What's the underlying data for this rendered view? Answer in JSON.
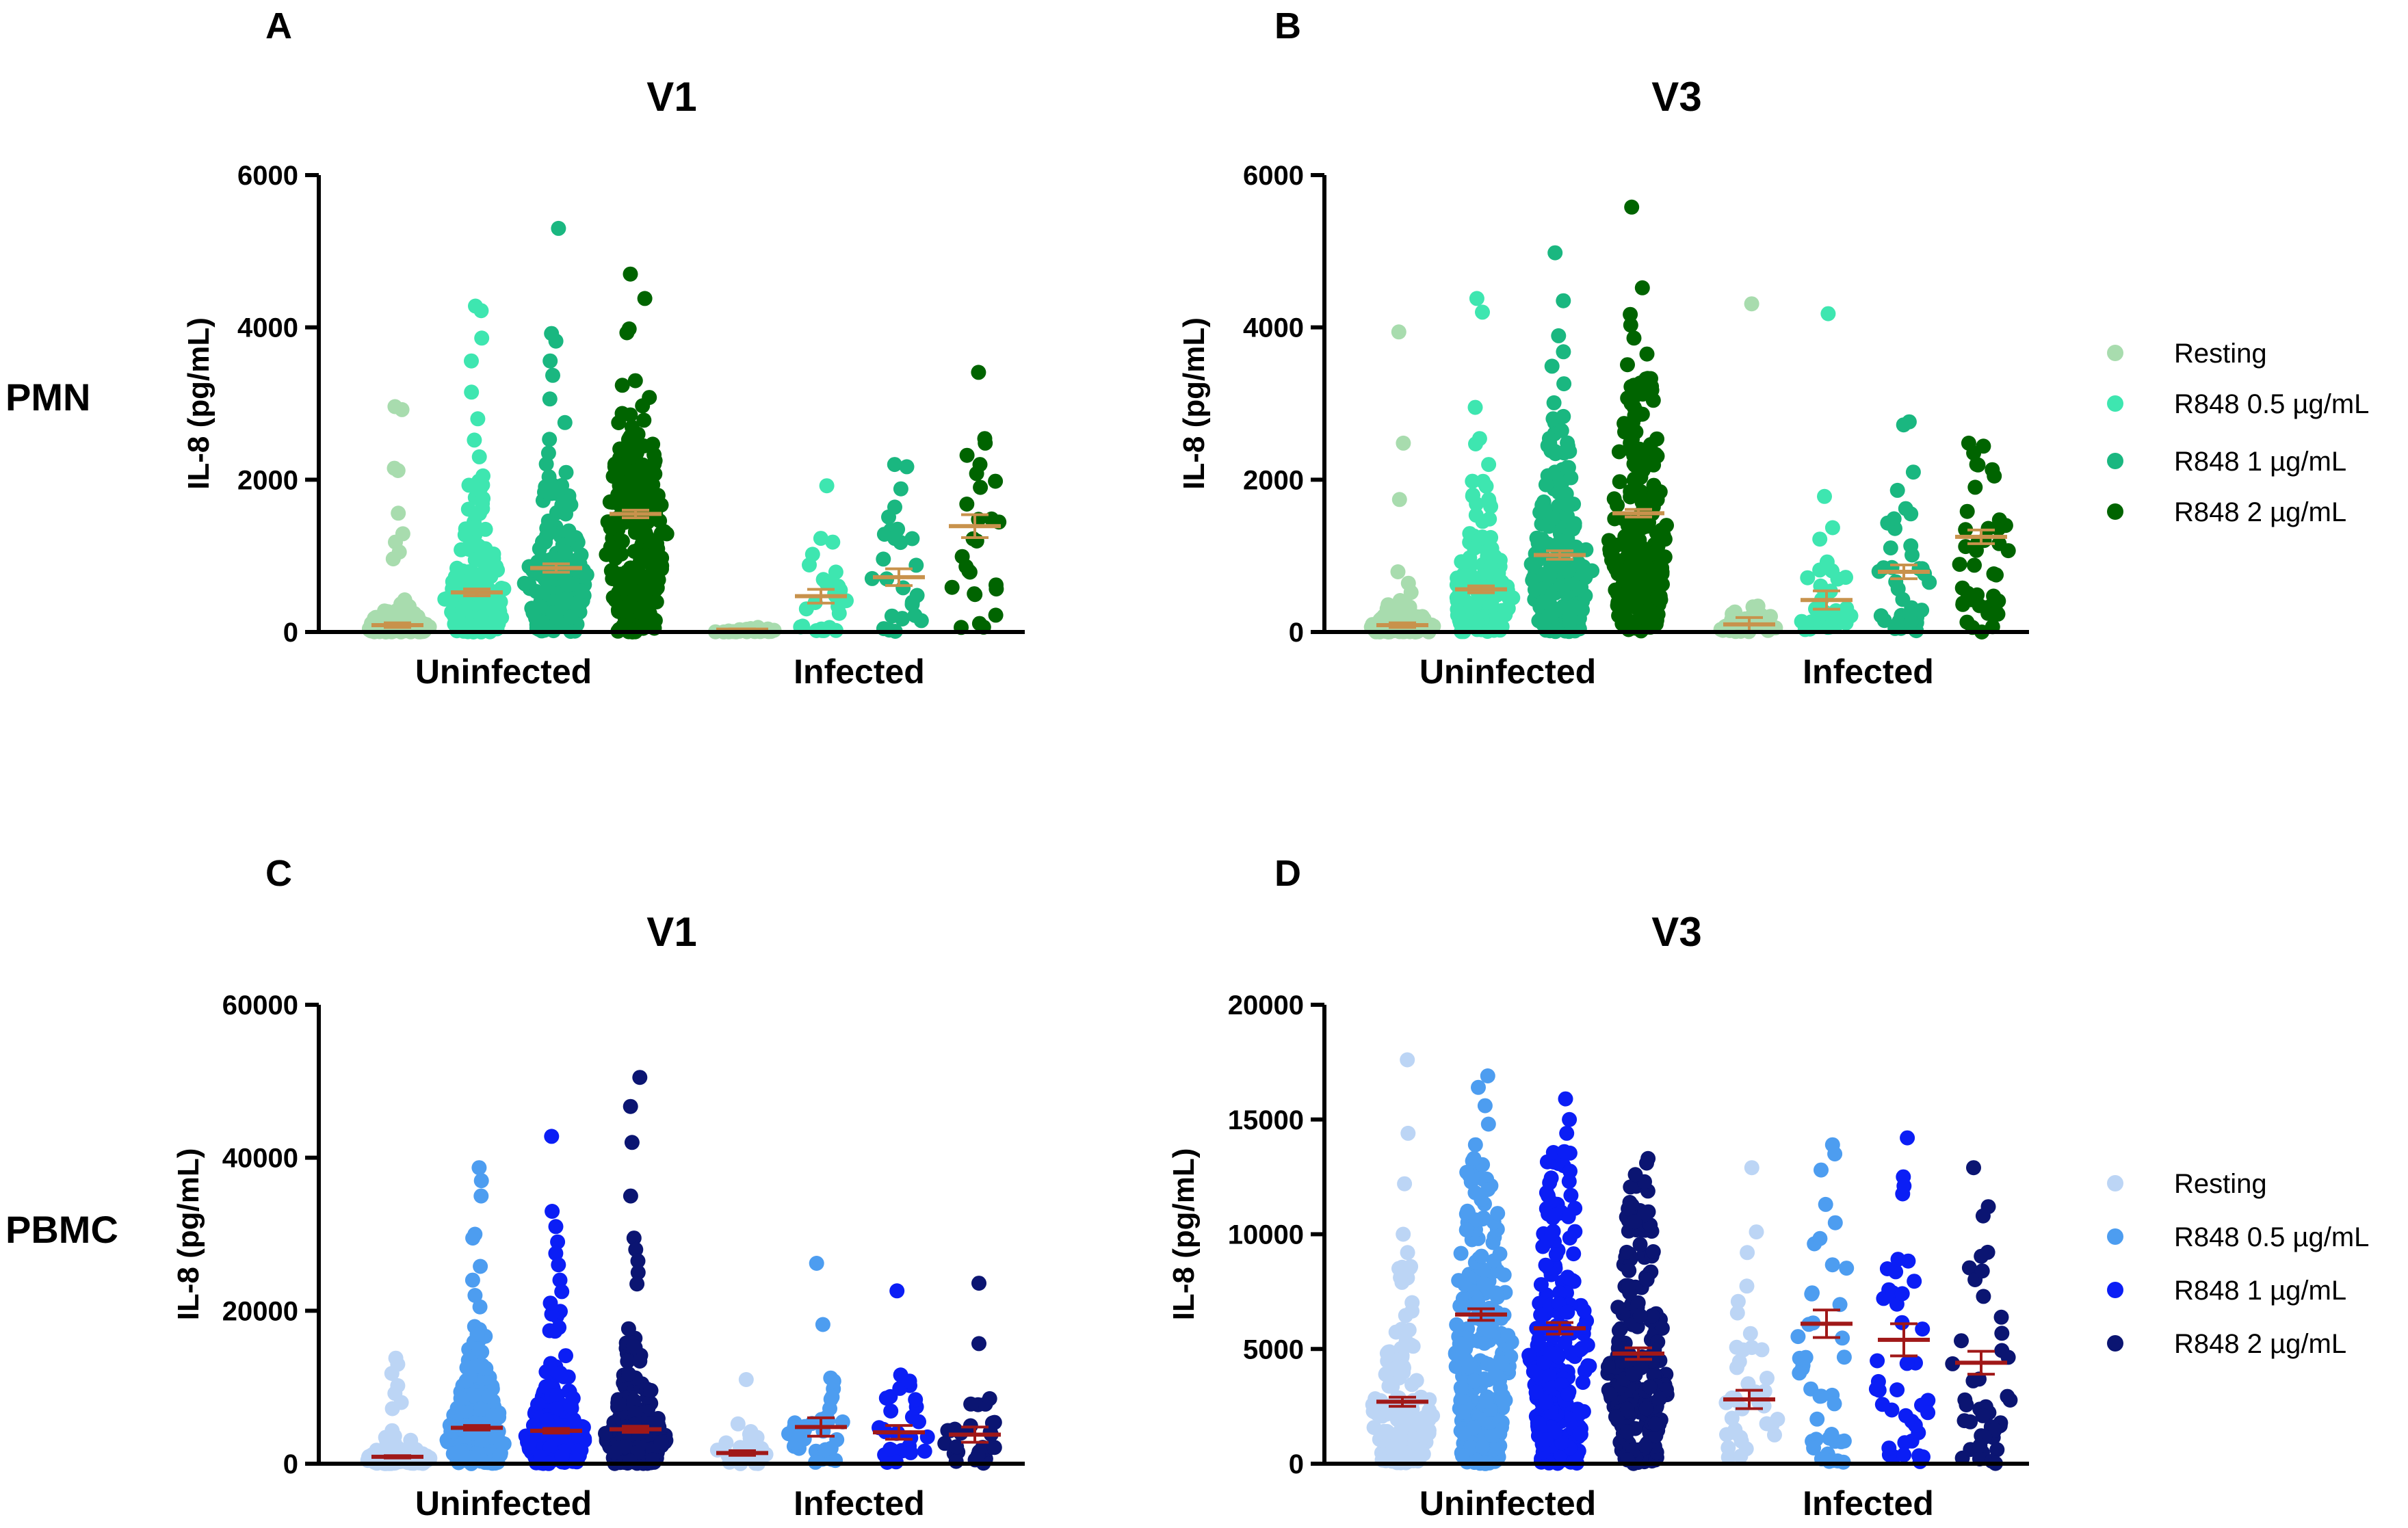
{
  "figure": {
    "row_labels": [
      "PMN",
      "PBMC"
    ],
    "legend_top": {
      "entries": [
        {
          "label": "Resting",
          "color": "#a8dcae"
        },
        {
          "label": "R848 0.5 µg/mL",
          "color": "#3ee6b0"
        },
        {
          "label": "R848 1 µg/mL",
          "color": "#1ab780"
        },
        {
          "label": "R848 2 µg/mL",
          "color": "#006400"
        }
      ]
    },
    "legend_bottom": {
      "entries": [
        {
          "label": "Resting",
          "color": "#bcd5f5"
        },
        {
          "label": "R848 0.5 µg/mL",
          "color": "#4d9df0"
        },
        {
          "label": "R848 1 µg/mL",
          "color": "#0b1ef5"
        },
        {
          "label": "R848 2 µg/mL",
          "color": "#0b1572"
        }
      ]
    }
  },
  "chart_data": [
    {
      "panel": "A",
      "title": "V1",
      "type": "scatter",
      "ylabel": "IL-8 (pg/mL)",
      "ylim": [
        0,
        6000
      ],
      "yticks": [
        0,
        2000,
        4000,
        6000
      ],
      "tick_labels": [
        "0",
        "2000",
        "4000",
        "6000"
      ],
      "groups": [
        "Uninfected",
        "Infected"
      ],
      "mean_color": "#c8924c",
      "series": [
        {
          "name": "Resting",
          "group": "Uninfected",
          "color": "#a8dcae",
          "mean": 90,
          "sem": 30,
          "n": 160,
          "extremes": [
            2960,
            2920,
            2150,
            2120,
            1560,
            1290,
            1180,
            1050,
            960
          ]
        },
        {
          "name": "R848 0.5 µg/mL",
          "group": "Uninfected",
          "color": "#3ee6b0",
          "mean": 520,
          "sem": 45,
          "n": 200,
          "extremes": [
            4280,
            4220,
            3860,
            3560,
            3150,
            2800,
            2520,
            2300,
            2050
          ]
        },
        {
          "name": "R848 1 µg/mL",
          "group": "Uninfected",
          "color": "#1ab780",
          "mean": 840,
          "sem": 55,
          "n": 210,
          "extremes": [
            5300,
            3920,
            3820,
            3560,
            3370,
            3060,
            2750,
            2530,
            2350
          ]
        },
        {
          "name": "R848 2 µg/mL",
          "group": "Uninfected",
          "color": "#006400",
          "mean": 1550,
          "sem": 50,
          "n": 240,
          "extremes": [
            4700,
            4380,
            3980,
            3930,
            3300,
            3240,
            3080,
            2970,
            2870
          ]
        },
        {
          "name": "Resting",
          "group": "Infected",
          "color": "#a8dcae",
          "mean": 30,
          "sem": 10,
          "n": 26,
          "extremes": [
            60
          ]
        },
        {
          "name": "R848 0.5 µg/mL",
          "group": "Infected",
          "color": "#3ee6b0",
          "mean": 470,
          "sem": 90,
          "n": 28,
          "extremes": [
            1920,
            1230,
            1180,
            1020,
            880
          ]
        },
        {
          "name": "R848 1 µg/mL",
          "group": "Infected",
          "color": "#1ab780",
          "mean": 720,
          "sem": 110,
          "n": 28,
          "extremes": [
            2200,
            2170,
            1880,
            1640,
            1510,
            1350
          ]
        },
        {
          "name": "R848 2 µg/mL",
          "group": "Infected",
          "color": "#006400",
          "mean": 1390,
          "sem": 150,
          "n": 27,
          "extremes": [
            3410,
            2540,
            2480,
            2320,
            2200,
            2080,
            1980
          ]
        }
      ]
    },
    {
      "panel": "B",
      "title": "V3",
      "type": "scatter",
      "ylabel": "IL-8 (pg/mL)",
      "ylim": [
        0,
        6000
      ],
      "yticks": [
        0,
        2000,
        4000,
        6000
      ],
      "tick_labels": [
        "0",
        "2000",
        "4000",
        "6000"
      ],
      "groups": [
        "Uninfected",
        "Infected"
      ],
      "mean_color": "#c8924c",
      "series": [
        {
          "name": "Resting",
          "group": "Uninfected",
          "color": "#a8dcae",
          "mean": 90,
          "sem": 30,
          "n": 160,
          "extremes": [
            3940,
            2480,
            1740,
            790,
            640,
            520
          ]
        },
        {
          "name": "R848 0.5 µg/mL",
          "group": "Uninfected",
          "color": "#3ee6b0",
          "mean": 560,
          "sem": 45,
          "n": 200,
          "extremes": [
            4380,
            4200,
            2950,
            2540,
            2470,
            2200,
            1980
          ]
        },
        {
          "name": "R848 1 µg/mL",
          "group": "Uninfected",
          "color": "#1ab780",
          "mean": 1010,
          "sem": 55,
          "n": 210,
          "extremes": [
            4980,
            4350,
            3890,
            3680,
            3490,
            3260,
            3010,
            2830
          ]
        },
        {
          "name": "R848 2 µg/mL",
          "group": "Uninfected",
          "color": "#006400",
          "mean": 1560,
          "sem": 50,
          "n": 240,
          "extremes": [
            5580,
            4520,
            4170,
            4030,
            3860,
            3650,
            3510,
            3330
          ]
        },
        {
          "name": "Resting",
          "group": "Infected",
          "color": "#a8dcae",
          "mean": 100,
          "sem": 90,
          "n": 36,
          "extremes": [
            4310,
            340
          ]
        },
        {
          "name": "R848 0.5 µg/mL",
          "group": "Infected",
          "color": "#3ee6b0",
          "mean": 420,
          "sem": 120,
          "n": 38,
          "extremes": [
            4180,
            1780,
            1370,
            1220,
            920
          ]
        },
        {
          "name": "R848 1 µg/mL",
          "group": "Infected",
          "color": "#1ab780",
          "mean": 790,
          "sem": 90,
          "n": 40,
          "extremes": [
            2760,
            2720,
            2100,
            1860,
            1620
          ]
        },
        {
          "name": "R848 2 µg/mL",
          "group": "Infected",
          "color": "#006400",
          "mean": 1250,
          "sem": 90,
          "n": 42,
          "extremes": [
            2480,
            2440,
            2350,
            2200
          ]
        }
      ]
    },
    {
      "panel": "C",
      "title": "V1",
      "type": "scatter",
      "ylabel": "IL-8 (pg/mL)",
      "ylim": [
        0,
        60000
      ],
      "yticks": [
        0,
        20000,
        40000,
        60000
      ],
      "tick_labels": [
        "0",
        "20000",
        "40000",
        "60000"
      ],
      "groups": [
        "Uninfected",
        "Infected"
      ],
      "mean_color": "#a01818",
      "series": [
        {
          "name": "Resting",
          "group": "Uninfected",
          "color": "#bcd5f5",
          "mean": 900,
          "sem": 150,
          "n": 160,
          "extremes": [
            13800,
            13000,
            11800,
            10200,
            9200,
            8000,
            7200
          ]
        },
        {
          "name": "R848 0.5 µg/mL",
          "group": "Uninfected",
          "color": "#4d9df0",
          "mean": 4700,
          "sem": 300,
          "n": 200,
          "extremes": [
            38700,
            37000,
            35000,
            30000,
            29500,
            25800,
            24000,
            22000,
            20500
          ]
        },
        {
          "name": "R848 1 µg/mL",
          "group": "Uninfected",
          "color": "#0b1ef5",
          "mean": 4300,
          "sem": 300,
          "n": 210,
          "extremes": [
            42800,
            33000,
            31000,
            29000,
            27500,
            26000,
            24000,
            22500,
            21000
          ]
        },
        {
          "name": "R848 2 µg/mL",
          "group": "Uninfected",
          "color": "#0b1572",
          "mean": 4500,
          "sem": 400,
          "n": 220,
          "extremes": [
            50500,
            46700,
            42000,
            35000,
            29500,
            28000,
            26500,
            25000,
            23500
          ]
        },
        {
          "name": "Resting",
          "group": "Infected",
          "color": "#bcd5f5",
          "mean": 1400,
          "sem": 300,
          "n": 26,
          "extremes": [
            11000,
            5200,
            4200
          ]
        },
        {
          "name": "R848 0.5 µg/mL",
          "group": "Infected",
          "color": "#4d9df0",
          "mean": 4800,
          "sem": 1200,
          "n": 32,
          "extremes": [
            26200,
            18200,
            11200,
            10800
          ]
        },
        {
          "name": "R848 1 µg/mL",
          "group": "Infected",
          "color": "#0b1ef5",
          "mean": 4100,
          "sem": 900,
          "n": 32,
          "extremes": [
            22600,
            11600,
            10800
          ]
        },
        {
          "name": "R848 2 µg/mL",
          "group": "Infected",
          "color": "#0b1572",
          "mean": 3800,
          "sem": 1000,
          "n": 30,
          "extremes": [
            23600,
            15700,
            8500,
            7800
          ]
        }
      ]
    },
    {
      "panel": "D",
      "title": "V3",
      "type": "scatter",
      "ylabel": "IL-8 (pg/mL)",
      "ylim": [
        0,
        20000
      ],
      "yticks": [
        0,
        5000,
        10000,
        15000,
        20000
      ],
      "tick_labels": [
        "0",
        "5000",
        "10000",
        "15000",
        "20000"
      ],
      "groups": [
        "Uninfected",
        "Infected"
      ],
      "mean_color": "#a01818",
      "series": [
        {
          "name": "Resting",
          "group": "Uninfected",
          "color": "#bcd5f5",
          "mean": 2700,
          "sem": 200,
          "n": 160,
          "extremes": [
            17600,
            14400,
            12200,
            10000,
            9200
          ]
        },
        {
          "name": "R848 0.5 µg/mL",
          "group": "Uninfected",
          "color": "#4d9df0",
          "mean": 6500,
          "sem": 250,
          "n": 240,
          "extremes": [
            16900,
            16400,
            15600,
            14800,
            13900,
            13300
          ]
        },
        {
          "name": "R848 1 µg/mL",
          "group": "Uninfected",
          "color": "#0b1ef5",
          "mean": 5900,
          "sem": 250,
          "n": 230,
          "extremes": [
            15900,
            15000,
            14400,
            13600
          ]
        },
        {
          "name": "R848 2 µg/mL",
          "group": "Uninfected",
          "color": "#0b1572",
          "mean": 4800,
          "sem": 250,
          "n": 220,
          "extremes": [
            13300,
            13100,
            12600
          ]
        },
        {
          "name": "Resting",
          "group": "Infected",
          "color": "#bcd5f5",
          "mean": 2800,
          "sem": 400,
          "n": 38,
          "extremes": [
            12900,
            10100,
            9200
          ]
        },
        {
          "name": "R848 0.5 µg/mL",
          "group": "Infected",
          "color": "#4d9df0",
          "mean": 6100,
          "sem": 600,
          "n": 42,
          "extremes": [
            13900,
            13500,
            12800,
            11300
          ]
        },
        {
          "name": "R848 1 µg/mL",
          "group": "Infected",
          "color": "#0b1ef5",
          "mean": 5400,
          "sem": 700,
          "n": 42,
          "extremes": [
            14200,
            12500,
            12100
          ]
        },
        {
          "name": "R848 2 µg/mL",
          "group": "Infected",
          "color": "#0b1572",
          "mean": 4400,
          "sem": 500,
          "n": 42,
          "extremes": [
            12900,
            11200,
            10800
          ]
        }
      ]
    }
  ]
}
